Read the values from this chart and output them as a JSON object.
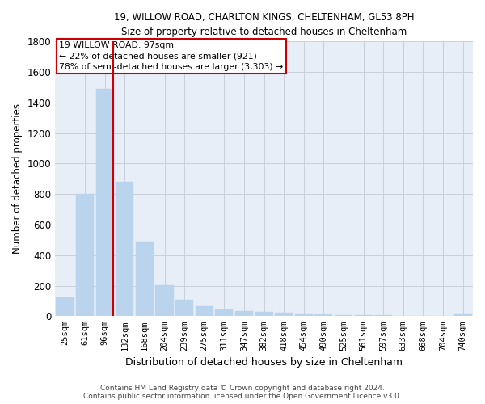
{
  "title_line1": "19, WILLOW ROAD, CHARLTON KINGS, CHELTENHAM, GL53 8PH",
  "title_line2": "Size of property relative to detached houses in Cheltenham",
  "xlabel": "Distribution of detached houses by size in Cheltenham",
  "ylabel": "Number of detached properties",
  "categories": [
    "25sqm",
    "61sqm",
    "96sqm",
    "132sqm",
    "168sqm",
    "204sqm",
    "239sqm",
    "275sqm",
    "311sqm",
    "347sqm",
    "382sqm",
    "418sqm",
    "454sqm",
    "490sqm",
    "525sqm",
    "561sqm",
    "597sqm",
    "633sqm",
    "668sqm",
    "704sqm",
    "740sqm"
  ],
  "values": [
    125,
    800,
    1490,
    880,
    490,
    205,
    105,
    65,
    45,
    35,
    28,
    25,
    20,
    10,
    8,
    5,
    5,
    4,
    3,
    2,
    18
  ],
  "bar_color": "#bad4ee",
  "bar_edge_color": "#bad4ee",
  "property_line_color": "#cc0000",
  "property_bar_index": 2,
  "annotation_text": "19 WILLOW ROAD: 97sqm\n← 22% of detached houses are smaller (921)\n78% of semi-detached houses are larger (3,303) →",
  "annotation_box_color": "#cc0000",
  "ylim": [
    0,
    1800
  ],
  "yticks": [
    0,
    200,
    400,
    600,
    800,
    1000,
    1200,
    1400,
    1600,
    1800
  ],
  "footer_line1": "Contains HM Land Registry data © Crown copyright and database right 2024.",
  "footer_line2": "Contains public sector information licensed under the Open Government Licence v3.0.",
  "background_color": "#ffffff",
  "ax_background_color": "#e8eef8",
  "grid_color": "#c8d0dc"
}
